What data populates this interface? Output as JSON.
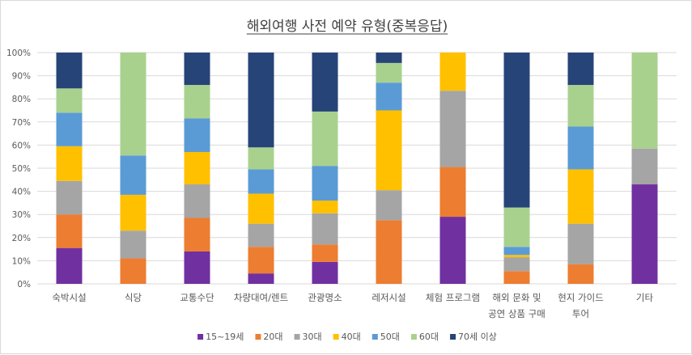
{
  "chart_data": {
    "type": "bar",
    "stacked": "percent",
    "title": "해외여행 사전 예약 유형(중복응답)",
    "categories": [
      [
        "숙박시설"
      ],
      [
        "식당"
      ],
      [
        "교통수단"
      ],
      [
        "차량대여/렌트"
      ],
      [
        "관광명소"
      ],
      [
        "레저시설"
      ],
      [
        "체험 프로그램"
      ],
      [
        "해외 문화 및",
        "공연 상품 구매"
      ],
      [
        "현지 가이드",
        "투어"
      ],
      [
        "기타"
      ]
    ],
    "ylim": [
      0,
      100
    ],
    "yticks": [
      "0%",
      "10%",
      "20%",
      "30%",
      "40%",
      "50%",
      "60%",
      "70%",
      "80%",
      "90%",
      "100%"
    ],
    "grid": true,
    "legend_position": "bottom",
    "series": [
      {
        "name": "15~19세",
        "color": "#7030A0",
        "values": [
          15.5,
          0,
          14,
          4.5,
          9.5,
          0,
          29,
          0,
          0,
          43
        ]
      },
      {
        "name": "20대",
        "color": "#ED7D31",
        "values": [
          14.5,
          11,
          14.5,
          11.5,
          7.5,
          27.5,
          21.5,
          5.5,
          8.5,
          0
        ]
      },
      {
        "name": "30대",
        "color": "#A5A5A5",
        "values": [
          14.5,
          12,
          14.5,
          10,
          13.5,
          13,
          33,
          6,
          17.5,
          15.5
        ]
      },
      {
        "name": "40대",
        "color": "#FFC000",
        "values": [
          15,
          15.5,
          14,
          13,
          5.5,
          34.5,
          16.5,
          1,
          23.5,
          0
        ]
      },
      {
        "name": "50대",
        "color": "#5B9BD5",
        "values": [
          14.5,
          17,
          14.5,
          10.5,
          15,
          12,
          0,
          3.5,
          18.5,
          0
        ]
      },
      {
        "name": "60대",
        "color": "#A9D18E",
        "values": [
          10.5,
          44.5,
          14.5,
          9.5,
          23.5,
          8.5,
          0,
          17,
          18,
          41.5
        ]
      },
      {
        "name": "70세 이상",
        "color": "#264478",
        "values": [
          15.5,
          0,
          14,
          41,
          25.5,
          4.5,
          0,
          67,
          14,
          0
        ]
      }
    ]
  }
}
